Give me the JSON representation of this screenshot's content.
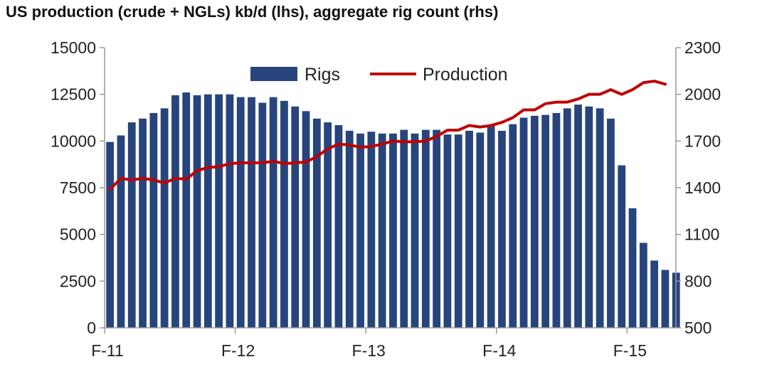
{
  "title": "US production (crude + NGLs) kb/d (lhs), aggregate rig count (rhs)",
  "colors": {
    "rigs": "#27457c",
    "production": "#c00000",
    "axis": "#999999"
  },
  "chart_data": {
    "type": "bar+line",
    "title": "US production (crude + NGLs) kb/d (lhs), aggregate rig count (rhs)",
    "x_ticks": [
      "F-11",
      "F-12",
      "F-13",
      "F-14",
      "F-15"
    ],
    "x_tick_month_index": [
      0,
      12,
      24,
      36,
      48
    ],
    "y_left": {
      "lim": [
        0,
        15000
      ],
      "ticks": [
        0,
        2500,
        5000,
        7500,
        10000,
        12500,
        15000
      ]
    },
    "y_right": {
      "lim": [
        500,
        2300
      ],
      "ticks": [
        500,
        800,
        1100,
        1400,
        1700,
        2000,
        2300
      ]
    },
    "legend": {
      "position": "top-center",
      "entries": [
        "Rigs",
        "Production"
      ]
    },
    "grid": false,
    "series": [
      {
        "name": "Rigs",
        "type": "bar",
        "axis": "left",
        "values": [
          9950,
          10300,
          11000,
          11200,
          11500,
          11750,
          12450,
          12600,
          12450,
          12500,
          12500,
          12500,
          12350,
          12350,
          12050,
          12350,
          12150,
          11850,
          11600,
          11200,
          11000,
          10850,
          10550,
          10400,
          10500,
          10400,
          10400,
          10600,
          10400,
          10600,
          10600,
          10350,
          10350,
          10550,
          10450,
          10800,
          10550,
          10900,
          11250,
          11350,
          11400,
          11500,
          11750,
          11950,
          11850,
          11750,
          11200,
          8700,
          6400,
          4550,
          3600,
          3100,
          2950
        ]
      },
      {
        "name": "Production",
        "type": "line",
        "axis": "right",
        "values": [
          1390,
          1460,
          1450,
          1460,
          1450,
          1430,
          1460,
          1455,
          1510,
          1530,
          1535,
          1555,
          1560,
          1560,
          1560,
          1570,
          1555,
          1560,
          1565,
          1600,
          1650,
          1680,
          1675,
          1660,
          1665,
          1680,
          1700,
          1695,
          1695,
          1700,
          1730,
          1770,
          1770,
          1800,
          1790,
          1800,
          1820,
          1850,
          1900,
          1900,
          1940,
          1950,
          1950,
          1970,
          2000,
          2000,
          2030,
          2000,
          2030,
          2075,
          2085,
          2065
        ]
      }
    ]
  }
}
